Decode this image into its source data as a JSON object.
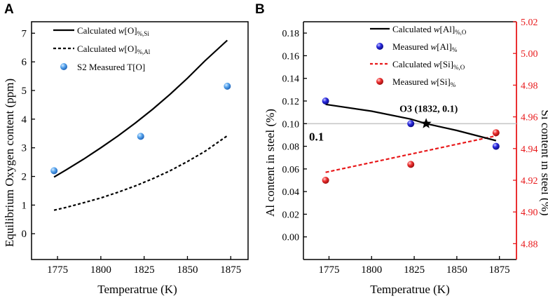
{
  "colors": {
    "axis": "#000000",
    "red": "#e8191b",
    "refline": "#c8c8c8",
    "blue_marker": "#2f6fd6",
    "blue_marker_B": "#1a1ad0",
    "red_marker": "#e42020"
  },
  "chart_data": [
    {
      "panel_label": "A",
      "type": "line",
      "xlabel": "Temperatrue (K)",
      "ylabel": "Equilibrium Oxygen content  (ppm)",
      "xlim": [
        1760,
        1885
      ],
      "ylim": [
        -0.9,
        7.4
      ],
      "xticks": [
        1775,
        1800,
        1825,
        1850,
        1875
      ],
      "xtick_labels": [
        "1775",
        "1800",
        "1825",
        "1850",
        "1875"
      ],
      "yticks": [
        0,
        1,
        2,
        3,
        4,
        5,
        6,
        7
      ],
      "ytick_labels": [
        "0",
        "1",
        "2",
        "3",
        "4",
        "5",
        "6",
        "7"
      ],
      "series": [
        {
          "name": "Calculated w[O]%,Si",
          "legend_base": "Calculated ",
          "legend_var": "w",
          "legend_bracket": "[O]",
          "legend_sub": "%,Si",
          "style": "solid",
          "x": [
            1773,
            1780,
            1790,
            1800,
            1810,
            1820,
            1830,
            1840,
            1850,
            1860,
            1873
          ],
          "y": [
            1.98,
            2.23,
            2.6,
            3.0,
            3.42,
            3.87,
            4.35,
            4.87,
            5.43,
            6.03,
            6.75
          ]
        },
        {
          "name": "Calculated w[O]%,Al",
          "legend_base": "Calculated ",
          "legend_var": "w",
          "legend_bracket": "[O]",
          "legend_sub": "%,Al",
          "style": "dashed",
          "x": [
            1773,
            1780,
            1790,
            1800,
            1810,
            1820,
            1830,
            1840,
            1850,
            1860,
            1873
          ],
          "y": [
            0.82,
            0.92,
            1.08,
            1.25,
            1.45,
            1.67,
            1.92,
            2.2,
            2.52,
            2.87,
            3.42
          ]
        },
        {
          "name": "S2 Measured T[O]",
          "legend_text": "S2 Measured T[O]",
          "style": "marker",
          "x": [
            1773,
            1823,
            1873
          ],
          "y": [
            2.2,
            3.4,
            5.15
          ]
        }
      ]
    },
    {
      "panel_label": "B",
      "type": "line",
      "xlabel": "Temperatrue (K)",
      "ylabel_left": "Al content in steel (%)",
      "ylabel_right": "Si content in steel (%)",
      "xlim": [
        1760,
        1885
      ],
      "ylim_left": [
        -0.02,
        0.19
      ],
      "ylim_right": [
        4.87,
        5.02
      ],
      "xticks": [
        1775,
        1800,
        1825,
        1850,
        1875
      ],
      "xtick_labels": [
        "1775",
        "1800",
        "1825",
        "1850",
        "1875"
      ],
      "yticks_left": [
        0.0,
        0.02,
        0.04,
        0.06,
        0.08,
        0.1,
        0.12,
        0.14,
        0.16,
        0.18
      ],
      "ytick_labels_left": [
        "0.00",
        "0.02",
        "0.04",
        "0.06",
        "0.08",
        "0.10",
        "0.12",
        "0.14",
        "0.16",
        "0.18"
      ],
      "yticks_right": [
        4.88,
        4.9,
        4.92,
        4.94,
        4.96,
        4.98,
        5.0,
        5.02
      ],
      "ytick_labels_right": [
        "4.88",
        "4.90",
        "4.92",
        "4.94",
        "4.96",
        "4.98",
        "5.00",
        "5.02"
      ],
      "reference_line": {
        "y": 0.1,
        "label": "0.1"
      },
      "annotation": {
        "text": "O3 (1832, 0.1)",
        "x": 1832,
        "y": 0.1
      },
      "series": [
        {
          "name": "Calculated w[Al]%,O",
          "legend_base": "Calculated ",
          "legend_var": "w",
          "legend_bracket": "[Al]",
          "legend_sub": "%,O",
          "axis": "left",
          "style": "solid",
          "x": [
            1773,
            1800,
            1823,
            1832,
            1850,
            1873
          ],
          "y": [
            0.117,
            0.111,
            0.104,
            0.1,
            0.094,
            0.085
          ]
        },
        {
          "name": "Measured w[Al]%",
          "legend_base": "Measured ",
          "legend_var": "w",
          "legend_bracket": "[Al]",
          "legend_sub": "%",
          "axis": "left",
          "style": "marker",
          "x": [
            1773,
            1823,
            1873
          ],
          "y": [
            0.12,
            0.1,
            0.08
          ]
        },
        {
          "name": "Calculated w[Si]%,O",
          "legend_base": "Calculated ",
          "legend_var": "w",
          "legend_bracket": "[Si]",
          "legend_sub": "%,O",
          "axis": "right",
          "style": "dashed",
          "x": [
            1773,
            1873
          ],
          "y": [
            4.925,
            4.948
          ]
        },
        {
          "name": "Measured w[Si]%",
          "legend_base": "Measured ",
          "legend_var": "w",
          "legend_bracket": "[Si]",
          "legend_sub": "%",
          "axis": "right",
          "style": "marker",
          "x": [
            1773,
            1823,
            1873
          ],
          "y": [
            4.92,
            4.93,
            4.95
          ]
        }
      ]
    }
  ]
}
